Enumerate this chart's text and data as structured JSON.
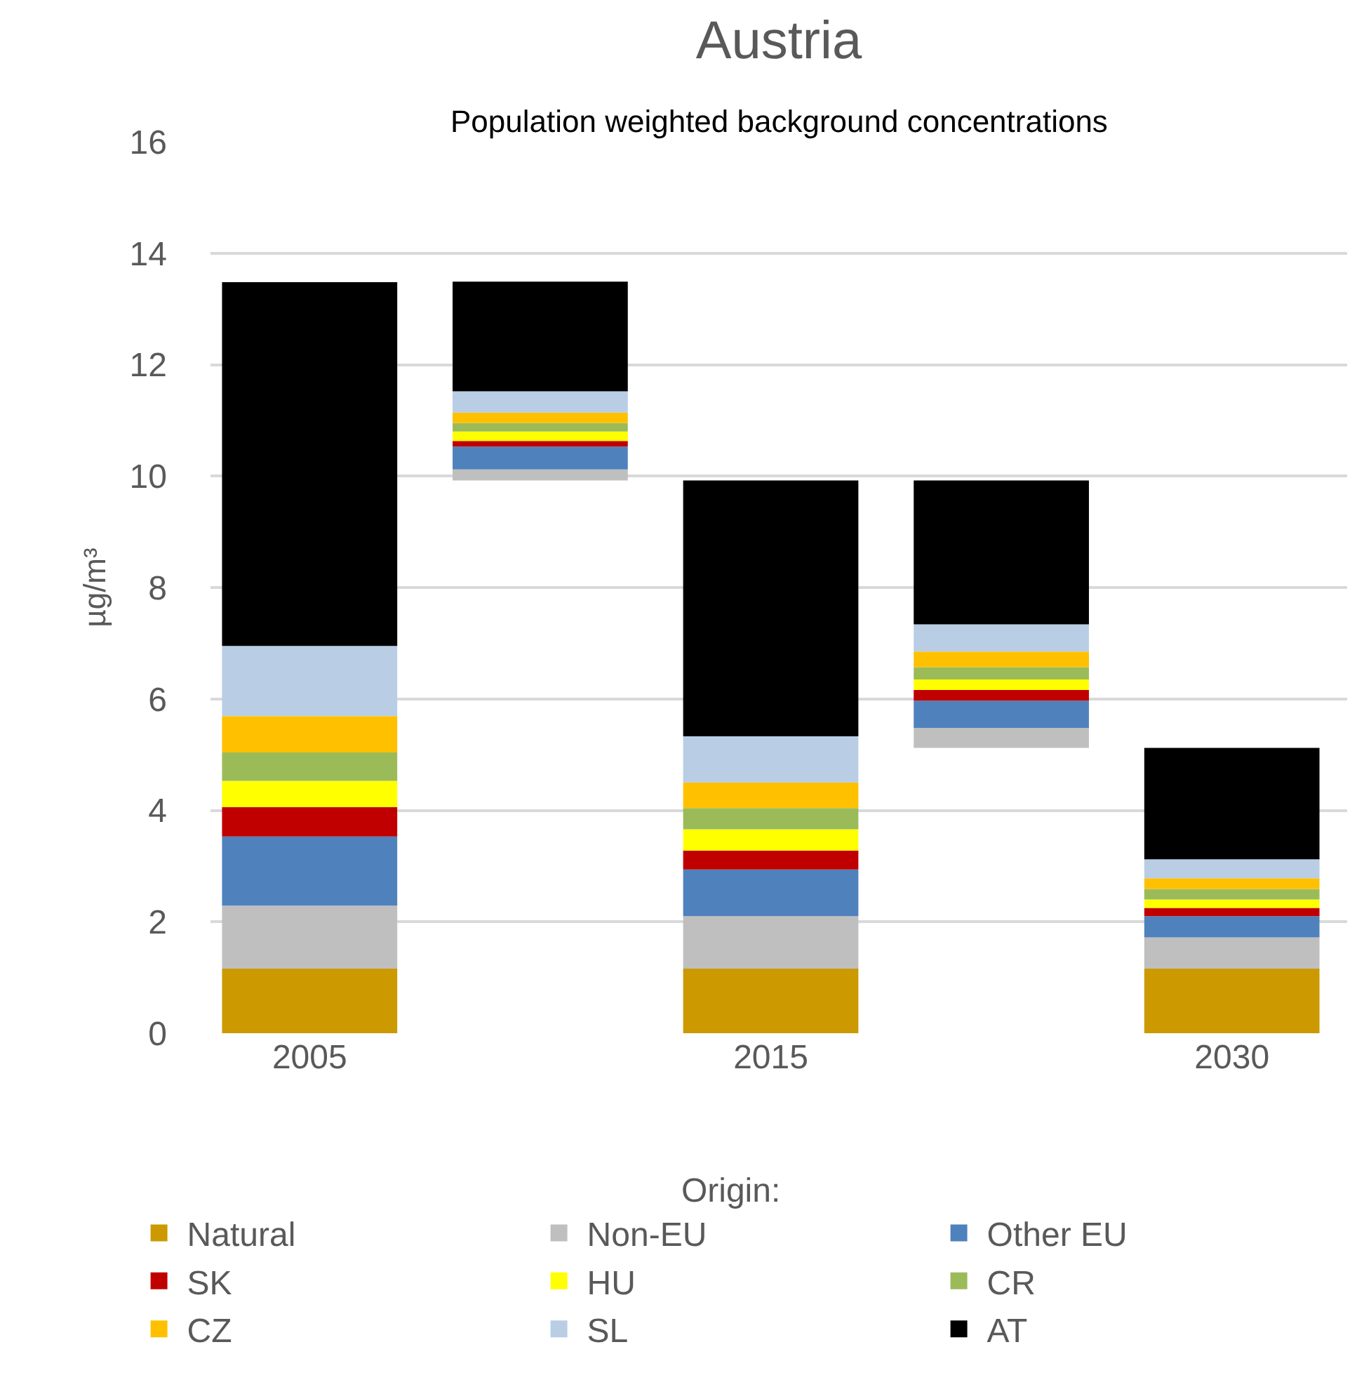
{
  "chart_data": {
    "type": "bar",
    "title": "Austria",
    "subtitle": "Population weighted background concentrations",
    "ylabel": "µg/m³",
    "legend_title": "Origin:",
    "categories": [
      "2005",
      null,
      "2015",
      null,
      "2030"
    ],
    "series": [
      {
        "name": "Natural",
        "color": "#cc9900",
        "values": [
          1.16,
          null,
          1.16,
          null,
          1.16
        ],
        "base": [
          0,
          null,
          0,
          null,
          0
        ]
      },
      {
        "name": "Non-EU",
        "color": "#bfbfbf",
        "values": [
          1.13,
          0.2,
          0.94,
          0.36,
          0.56
        ],
        "base": [
          1.16,
          9.92,
          1.16,
          5.12,
          1.16
        ]
      },
      {
        "name": "Other EU",
        "color": "#4f81bd",
        "values": [
          1.24,
          0.41,
          0.84,
          0.49,
          0.38
        ],
        "base": [
          2.29,
          10.12,
          2.1,
          5.48,
          1.72
        ]
      },
      {
        "name": "SK",
        "color": "#c00000",
        "values": [
          0.53,
          0.1,
          0.34,
          0.19,
          0.15
        ],
        "base": [
          3.53,
          10.53,
          2.94,
          5.97,
          2.1
        ]
      },
      {
        "name": "HU",
        "color": "#ffff00",
        "values": [
          0.47,
          0.17,
          0.38,
          0.19,
          0.15
        ],
        "base": [
          4.06,
          10.63,
          3.28,
          6.16,
          2.25
        ]
      },
      {
        "name": "CR",
        "color": "#9bbb59",
        "values": [
          0.51,
          0.15,
          0.38,
          0.22,
          0.19
        ],
        "base": [
          4.53,
          10.8,
          3.66,
          6.35,
          2.4
        ]
      },
      {
        "name": "CZ",
        "color": "#ffc000",
        "values": [
          0.65,
          0.19,
          0.46,
          0.28,
          0.19
        ],
        "base": [
          5.04,
          10.95,
          4.04,
          6.57,
          2.59
        ]
      },
      {
        "name": "SL",
        "color": "#b9cde5",
        "values": [
          1.26,
          0.38,
          0.83,
          0.49,
          0.34
        ],
        "base": [
          5.69,
          11.14,
          4.5,
          6.85,
          2.78
        ]
      },
      {
        "name": "AT",
        "color": "#000000",
        "values": [
          6.53,
          1.97,
          4.59,
          2.58,
          2.0
        ],
        "base": [
          6.95,
          11.52,
          5.33,
          7.34,
          3.12
        ]
      }
    ],
    "ylim": [
      0,
      16
    ],
    "yticks": [
      0,
      2,
      4,
      6,
      8,
      10,
      12,
      14,
      16
    ],
    "grid": "y",
    "legend": "bottom"
  }
}
